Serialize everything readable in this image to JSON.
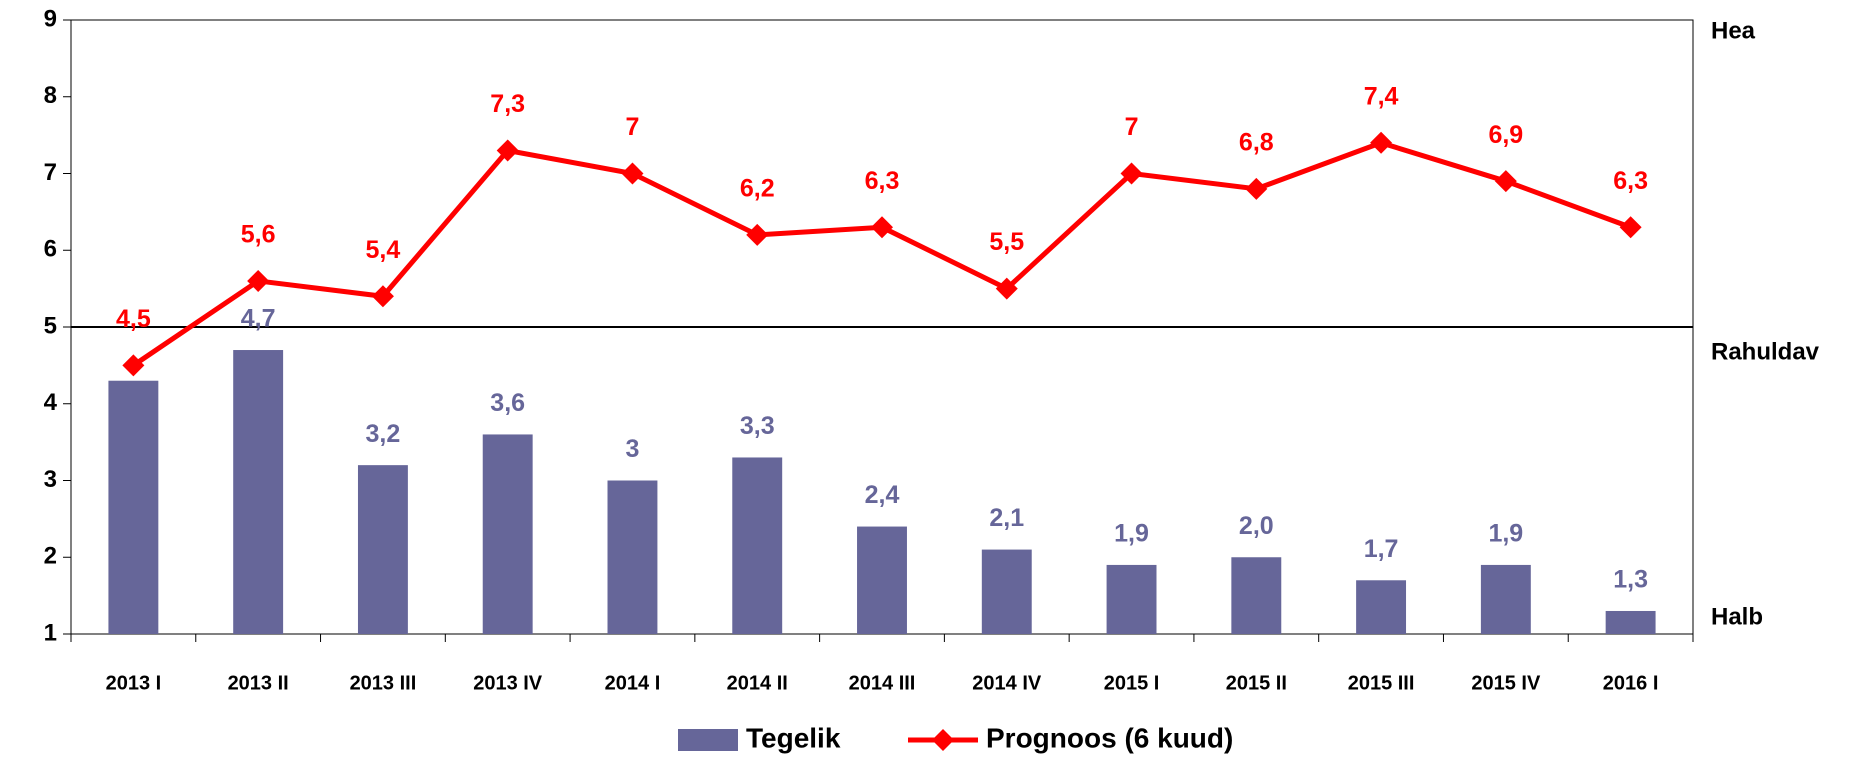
{
  "chart_data": {
    "type": "bar",
    "categories": [
      "2013 I",
      "2013 II",
      "2013 III",
      "2013 IV",
      "2014 I",
      "2014 II",
      "2014 III",
      "2014 IV",
      "2015 I",
      "2015 II",
      "2015 III",
      "2015 IV",
      "2016 I"
    ],
    "series": [
      {
        "name": "Tegelik",
        "type": "bar",
        "color": "#666699",
        "values": [
          4.3,
          4.7,
          3.2,
          3.6,
          3,
          3.3,
          2.4,
          2.1,
          1.9,
          2.0,
          1.7,
          1.9,
          1.3
        ],
        "value_labels": [
          null,
          "4,7",
          "3,2",
          "3,6",
          "3",
          "3,3",
          "2,4",
          "2,1",
          "1,9",
          "2,0",
          "1,7",
          "1,9",
          "1,3"
        ]
      },
      {
        "name": "Prognoos (6 kuud)",
        "type": "line",
        "color": "#ff0000",
        "values": [
          4.5,
          5.6,
          5.4,
          7.3,
          7,
          6.2,
          6.3,
          5.5,
          7,
          6.8,
          7.4,
          6.9,
          6.3
        ],
        "value_labels": [
          "4,5",
          "5,6",
          "5,4",
          "7,3",
          "7",
          "6,2",
          "6,3",
          "5,5",
          "7",
          "6,8",
          "7,4",
          "6,9",
          "6,3"
        ]
      }
    ],
    "ylim": [
      1,
      9
    ],
    "yticks": [
      1,
      2,
      3,
      4,
      5,
      6,
      7,
      8,
      9
    ],
    "reference_line": 5,
    "annotations": [
      {
        "text": "Hea",
        "y": 9
      },
      {
        "text": "Rahuldav",
        "y": 5
      },
      {
        "text": "Halb",
        "y": 1
      }
    ],
    "legend": "bottom"
  }
}
